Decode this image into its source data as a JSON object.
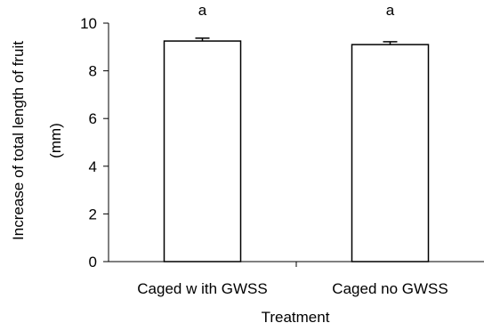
{
  "chart_data": {
    "type": "bar",
    "xlabel": "Treatment",
    "ylabel_line1": "Increase of total length of fruit",
    "ylabel_line2": "(mm)",
    "categories": [
      "Caged w ith GWSS",
      "Caged no GWSS"
    ],
    "values": [
      9.25,
      9.1
    ],
    "errors": [
      0.12,
      0.12
    ],
    "significance_labels": [
      "a",
      "a"
    ],
    "ylim": [
      0,
      10
    ],
    "yticks": [
      0,
      2,
      4,
      6,
      8,
      10
    ],
    "grid": false,
    "legend": "none",
    "colors": {
      "bar_fill": "#ffffff",
      "bar_stroke": "#000000",
      "axis": "#000000"
    }
  }
}
